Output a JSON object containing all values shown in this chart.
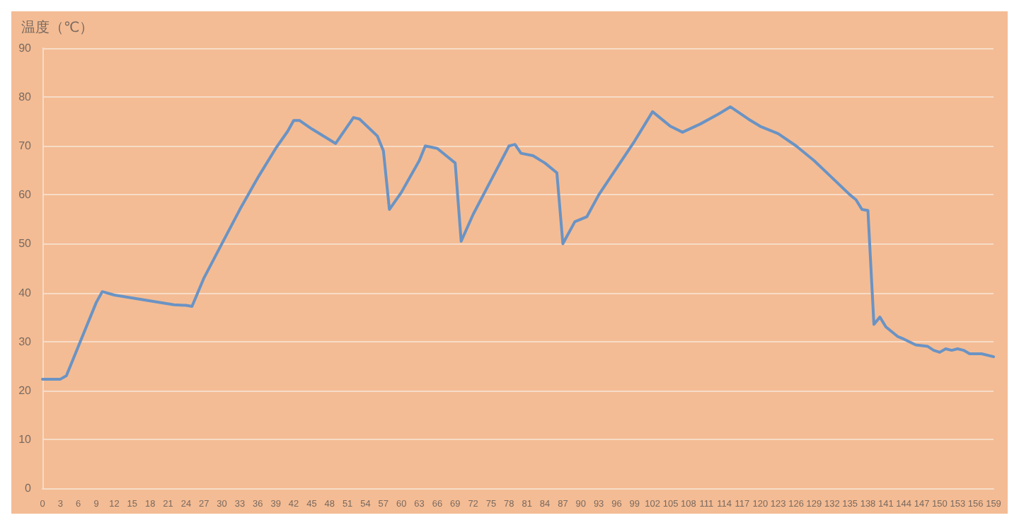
{
  "chart_data": {
    "type": "line",
    "ylabel": "温度（℃）",
    "x": [
      0,
      3,
      4,
      6,
      9,
      10,
      12,
      18,
      22,
      24,
      25,
      27,
      30,
      33,
      36,
      39,
      41,
      42,
      43,
      45,
      49,
      52,
      53,
      56,
      57,
      58,
      60,
      63,
      64,
      66,
      68,
      69,
      70,
      72,
      75,
      78,
      79,
      80,
      82,
      84,
      86,
      87,
      89,
      90,
      91,
      93,
      96,
      99,
      102,
      105,
      107,
      110,
      113,
      115,
      118,
      120,
      123,
      126,
      129,
      132,
      135,
      136,
      137,
      138,
      139,
      140,
      141,
      143,
      144,
      146,
      148,
      149,
      150,
      151,
      152,
      153,
      154,
      155,
      157,
      159
    ],
    "series": [
      {
        "color": "#6a93c4",
        "values": [
          22.3,
          22.3,
          23,
          29,
          38,
          40.2,
          39.5,
          38.3,
          37.5,
          37.4,
          37.2,
          43,
          50,
          57,
          63.5,
          69.5,
          73,
          75.2,
          75.2,
          73.5,
          70.5,
          75.8,
          75.5,
          72,
          69,
          57,
          60.5,
          67,
          70,
          69.5,
          67.5,
          66.5,
          50.5,
          56,
          63,
          70,
          70.3,
          68.5,
          68,
          66.5,
          64.5,
          50,
          54.5,
          55,
          55.5,
          60,
          65.5,
          71,
          77,
          74,
          72.8,
          74.5,
          76.5,
          78,
          75.5,
          74,
          72.5,
          70,
          67,
          63.5,
          60,
          59,
          57,
          56.8,
          33.5,
          35,
          33,
          31,
          30.5,
          29.3,
          29,
          28.2,
          27.8,
          28.5,
          28.2,
          28.5,
          28.2,
          27.5,
          27.5,
          26.9
        ]
      }
    ],
    "xlim": [
      0,
      159
    ],
    "xticks": [
      0,
      3,
      6,
      9,
      12,
      15,
      18,
      21,
      24,
      27,
      30,
      33,
      36,
      39,
      42,
      45,
      48,
      51,
      54,
      57,
      60,
      63,
      66,
      69,
      72,
      75,
      78,
      81,
      84,
      87,
      90,
      93,
      96,
      99,
      102,
      105,
      108,
      111,
      114,
      117,
      120,
      123,
      126,
      129,
      132,
      135,
      138,
      141,
      144,
      147,
      150,
      153,
      156,
      159
    ],
    "ylim": [
      0,
      90
    ],
    "yticks": [
      0,
      10,
      20,
      30,
      40,
      50,
      60,
      70,
      80,
      90
    ],
    "grid": "y",
    "marker": "none",
    "line_style": "solid"
  }
}
